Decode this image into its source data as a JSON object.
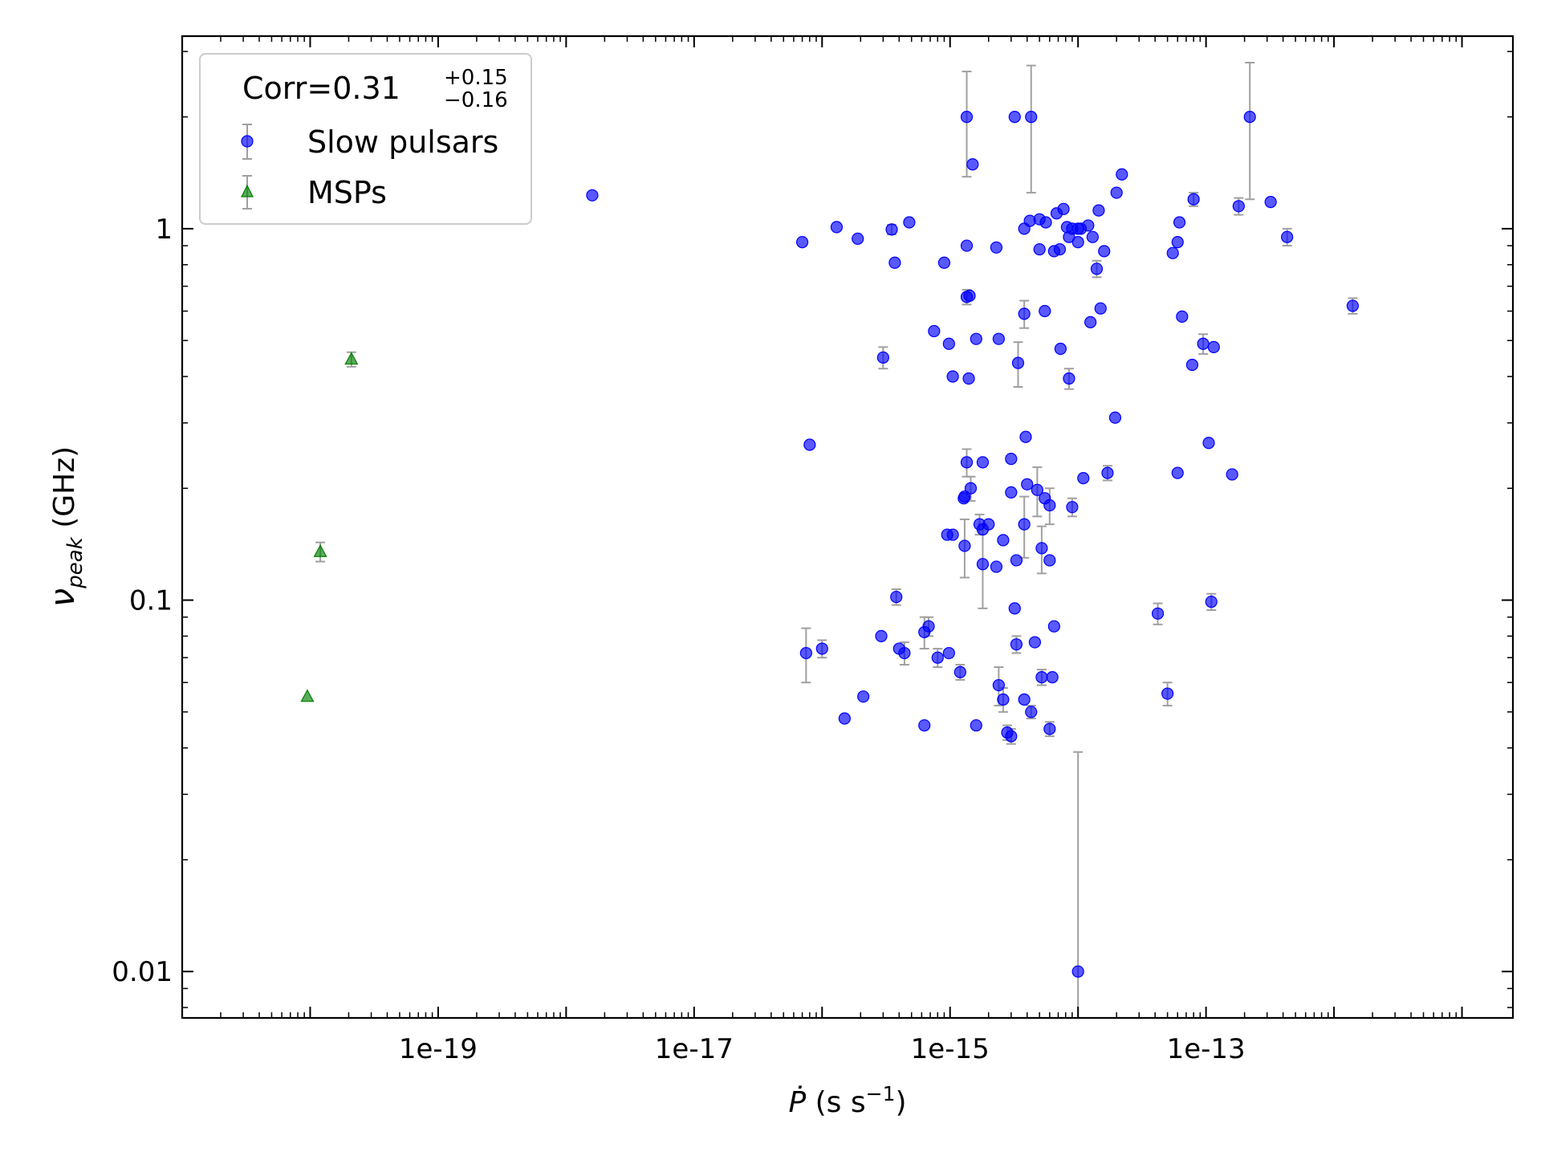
{
  "chart_data": {
    "type": "scatter",
    "title": "",
    "xlabel": "Ṗ (s s⁻¹)",
    "ylabel": "ν_peak (GHz)",
    "xscale": "log",
    "yscale": "log",
    "xlim": [
      1e-21,
      2.5e-11
    ],
    "ylim": [
      0.0075,
      3.3
    ],
    "xticks": [
      {
        "value": 1e-19,
        "label": "1e-19"
      },
      {
        "value": 1e-17,
        "label": "1e-17"
      },
      {
        "value": 1e-15,
        "label": "1e-15"
      },
      {
        "value": 1e-13,
        "label": "1e-13"
      }
    ],
    "yticks": [
      {
        "value": 0.01,
        "label": "0.01"
      },
      {
        "value": 0.1,
        "label": "0.1"
      },
      {
        "value": 1,
        "label": "1"
      }
    ],
    "grid": false,
    "legend": {
      "placement": "top-left",
      "corr_label": "Corr=0.31",
      "corr_sup": "+0.15",
      "corr_sub": "−0.16",
      "entries": [
        {
          "name": "Slow pulsars",
          "marker": "circle"
        },
        {
          "name": "MSPs",
          "marker": "triangle"
        }
      ]
    },
    "colors": {
      "slow": "#0000ff",
      "msp": "#008000",
      "errorbar": "#a0a0a0"
    },
    "series": [
      {
        "name": "Slow pulsars",
        "marker": "circle",
        "points": [
          {
            "x": 1.6e-18,
            "y": 1.23
          },
          {
            "x": 7e-17,
            "y": 0.92
          },
          {
            "x": 1.3e-16,
            "y": 1.01
          },
          {
            "x": 1.9e-16,
            "y": 0.94
          },
          {
            "x": 3.5e-16,
            "y": 0.995,
            "el": 0.03,
            "eh": 0.03
          },
          {
            "x": 4.8e-16,
            "y": 1.04
          },
          {
            "x": 3.7e-16,
            "y": 0.81
          },
          {
            "x": 9e-16,
            "y": 0.81
          },
          {
            "x": 1.35e-15,
            "y": 0.9
          },
          {
            "x": 2.3e-15,
            "y": 0.89
          },
          {
            "x": 1.35e-15,
            "y": 2.0,
            "el": 0.62,
            "eh": 0.65
          },
          {
            "x": 1.5e-15,
            "y": 1.49
          },
          {
            "x": 3.2e-15,
            "y": 2.0
          },
          {
            "x": 4.3e-15,
            "y": 2.0,
            "el": 0.75,
            "eh": 0.75
          },
          {
            "x": 3.8e-15,
            "y": 1.0
          },
          {
            "x": 4.2e-15,
            "y": 1.05
          },
          {
            "x": 5e-15,
            "y": 1.06
          },
          {
            "x": 5.6e-15,
            "y": 1.04
          },
          {
            "x": 6.8e-15,
            "y": 1.1
          },
          {
            "x": 7.7e-15,
            "y": 1.13
          },
          {
            "x": 8.2e-15,
            "y": 1.01
          },
          {
            "x": 9e-15,
            "y": 1.0
          },
          {
            "x": 1e-14,
            "y": 1.0
          },
          {
            "x": 1.05e-14,
            "y": 1.0
          },
          {
            "x": 1.2e-14,
            "y": 1.02
          },
          {
            "x": 8.5e-15,
            "y": 0.95
          },
          {
            "x": 1.3e-14,
            "y": 0.95
          },
          {
            "x": 1.45e-14,
            "y": 1.12
          },
          {
            "x": 1e-14,
            "y": 0.92
          },
          {
            "x": 5e-15,
            "y": 0.88
          },
          {
            "x": 6.5e-15,
            "y": 0.87
          },
          {
            "x": 7.2e-15,
            "y": 0.88
          },
          {
            "x": 1.6e-14,
            "y": 0.87
          },
          {
            "x": 1.4e-14,
            "y": 0.78,
            "el": 0.04,
            "eh": 0.04
          },
          {
            "x": 2e-14,
            "y": 1.25
          },
          {
            "x": 2.2e-14,
            "y": 1.4
          },
          {
            "x": 5.5e-14,
            "y": 0.86
          },
          {
            "x": 6e-14,
            "y": 0.92
          },
          {
            "x": 6.2e-14,
            "y": 1.04
          },
          {
            "x": 8e-14,
            "y": 1.2,
            "el": 0.05,
            "eh": 0.05
          },
          {
            "x": 1.8e-13,
            "y": 1.15,
            "el": 0.06,
            "eh": 0.06
          },
          {
            "x": 2.2e-13,
            "y": 2.0,
            "el": 0.8,
            "eh": 0.8
          },
          {
            "x": 3.2e-13,
            "y": 1.18
          },
          {
            "x": 4.3e-13,
            "y": 0.95,
            "el": 0.05,
            "eh": 0.05
          },
          {
            "x": 1.4e-12,
            "y": 0.62,
            "el": 0.03,
            "eh": 0.03
          },
          {
            "x": 1.35e-15,
            "y": 0.655,
            "el": 0.03,
            "eh": 0.03
          },
          {
            "x": 1.42e-15,
            "y": 0.66
          },
          {
            "x": 3.8e-15,
            "y": 0.59,
            "el": 0.05,
            "eh": 0.05
          },
          {
            "x": 5.5e-15,
            "y": 0.6
          },
          {
            "x": 1.25e-14,
            "y": 0.56
          },
          {
            "x": 1.5e-14,
            "y": 0.61
          },
          {
            "x": 6.5e-14,
            "y": 0.58
          },
          {
            "x": 7.5e-16,
            "y": 0.53
          },
          {
            "x": 9.8e-16,
            "y": 0.49
          },
          {
            "x": 1.6e-15,
            "y": 0.505
          },
          {
            "x": 2.4e-15,
            "y": 0.505
          },
          {
            "x": 7.3e-15,
            "y": 0.475
          },
          {
            "x": 9.5e-14,
            "y": 0.49,
            "el": 0.03,
            "eh": 0.03
          },
          {
            "x": 1.15e-13,
            "y": 0.48
          },
          {
            "x": 3e-16,
            "y": 0.45,
            "el": 0.03,
            "eh": 0.03
          },
          {
            "x": 3.4e-15,
            "y": 0.435,
            "el": 0.06,
            "eh": 0.06
          },
          {
            "x": 7.8e-14,
            "y": 0.43
          },
          {
            "x": 1.05e-15,
            "y": 0.4
          },
          {
            "x": 1.4e-15,
            "y": 0.395
          },
          {
            "x": 8.5e-15,
            "y": 0.395,
            "el": 0.025,
            "eh": 0.025
          },
          {
            "x": 1.95e-14,
            "y": 0.31
          },
          {
            "x": 3.9e-15,
            "y": 0.275
          },
          {
            "x": 1.05e-13,
            "y": 0.265
          },
          {
            "x": 8e-17,
            "y": 0.262
          },
          {
            "x": 3e-15,
            "y": 0.24
          },
          {
            "x": 1.35e-15,
            "y": 0.235,
            "el": 0.02,
            "eh": 0.02
          },
          {
            "x": 1.8e-15,
            "y": 0.235
          },
          {
            "x": 1.7e-14,
            "y": 0.22,
            "el": 0.01,
            "eh": 0.01
          },
          {
            "x": 6e-14,
            "y": 0.22
          },
          {
            "x": 1.6e-13,
            "y": 0.218
          },
          {
            "x": 1.1e-14,
            "y": 0.213
          },
          {
            "x": 4e-15,
            "y": 0.205
          },
          {
            "x": 1.45e-15,
            "y": 0.2,
            "el": 0.015,
            "eh": 0.015
          },
          {
            "x": 1.3e-15,
            "y": 0.19
          },
          {
            "x": 1.28e-15,
            "y": 0.188
          },
          {
            "x": 3e-15,
            "y": 0.195
          },
          {
            "x": 4.8e-15,
            "y": 0.198,
            "el": 0.03,
            "eh": 0.03
          },
          {
            "x": 5.5e-15,
            "y": 0.188
          },
          {
            "x": 6e-15,
            "y": 0.18,
            "el": 0.02,
            "eh": 0.02
          },
          {
            "x": 9e-15,
            "y": 0.178,
            "el": 0.01,
            "eh": 0.01
          },
          {
            "x": 1.7e-15,
            "y": 0.16,
            "el": 0.01,
            "eh": 0.01
          },
          {
            "x": 2e-15,
            "y": 0.16
          },
          {
            "x": 1.8e-15,
            "y": 0.155
          },
          {
            "x": 3.8e-15,
            "y": 0.16,
            "el": 0.03,
            "eh": 0.03
          },
          {
            "x": 9.5e-16,
            "y": 0.15
          },
          {
            "x": 1.05e-15,
            "y": 0.15
          },
          {
            "x": 2.6e-15,
            "y": 0.145
          },
          {
            "x": 1.3e-15,
            "y": 0.14,
            "el": 0.025,
            "eh": 0.025
          },
          {
            "x": 5.2e-15,
            "y": 0.138,
            "el": 0.02,
            "eh": 0.02
          },
          {
            "x": 1.8e-15,
            "y": 0.125,
            "el": 0.03,
            "eh": 0.035
          },
          {
            "x": 2.3e-15,
            "y": 0.123
          },
          {
            "x": 3.3e-15,
            "y": 0.128
          },
          {
            "x": 6e-15,
            "y": 0.128
          },
          {
            "x": 3.8e-16,
            "y": 0.102,
            "el": 0.005,
            "eh": 0.005
          },
          {
            "x": 3.2e-15,
            "y": 0.095
          },
          {
            "x": 1.1e-13,
            "y": 0.099,
            "el": 0.005,
            "eh": 0.005
          },
          {
            "x": 4.2e-14,
            "y": 0.092,
            "el": 0.006,
            "eh": 0.006
          },
          {
            "x": 6.8e-16,
            "y": 0.085,
            "el": 0.005,
            "eh": 0.005
          },
          {
            "x": 6.5e-15,
            "y": 0.085
          },
          {
            "x": 6.3e-16,
            "y": 0.082,
            "el": 0.008,
            "eh": 0.008
          },
          {
            "x": 2.9e-16,
            "y": 0.08
          },
          {
            "x": 4e-16,
            "y": 0.074
          },
          {
            "x": 4.4e-16,
            "y": 0.072,
            "el": 0.005,
            "eh": 0.005
          },
          {
            "x": 7.5e-17,
            "y": 0.072,
            "el": 0.012,
            "eh": 0.012
          },
          {
            "x": 1e-16,
            "y": 0.074,
            "el": 0.004,
            "eh": 0.004
          },
          {
            "x": 8e-16,
            "y": 0.07,
            "el": 0.004,
            "eh": 0.004
          },
          {
            "x": 9.8e-16,
            "y": 0.072
          },
          {
            "x": 3.3e-15,
            "y": 0.076,
            "el": 0.004,
            "eh": 0.004
          },
          {
            "x": 4.6e-15,
            "y": 0.077
          },
          {
            "x": 1.2e-15,
            "y": 0.064,
            "el": 0.003,
            "eh": 0.003
          },
          {
            "x": 5.2e-15,
            "y": 0.062,
            "el": 0.003,
            "eh": 0.003
          },
          {
            "x": 6.3e-15,
            "y": 0.062
          },
          {
            "x": 2.4e-15,
            "y": 0.059,
            "el": 0.007,
            "eh": 0.007
          },
          {
            "x": 2.1e-16,
            "y": 0.055
          },
          {
            "x": 2.6e-15,
            "y": 0.054,
            "el": 0.004,
            "eh": 0.004
          },
          {
            "x": 3.8e-15,
            "y": 0.054
          },
          {
            "x": 5e-14,
            "y": 0.056,
            "el": 0.004,
            "eh": 0.004
          },
          {
            "x": 1.5e-16,
            "y": 0.048
          },
          {
            "x": 4.3e-15,
            "y": 0.05,
            "el": 0.002,
            "eh": 0.002
          },
          {
            "x": 6.3e-16,
            "y": 0.046
          },
          {
            "x": 1.6e-15,
            "y": 0.046
          },
          {
            "x": 2.8e-15,
            "y": 0.044,
            "el": 0.002,
            "eh": 0.002
          },
          {
            "x": 3e-15,
            "y": 0.043,
            "el": 0.002,
            "eh": 0.002
          },
          {
            "x": 6e-15,
            "y": 0.045,
            "el": 0.002,
            "eh": 0.002
          },
          {
            "x": 1e-14,
            "y": 0.01,
            "el": 0.0028,
            "eh": 0.029
          }
        ]
      },
      {
        "name": "MSPs",
        "marker": "triangle",
        "points": [
          {
            "x": 9.5e-21,
            "y": 0.055
          },
          {
            "x": 1.2e-20,
            "y": 0.135,
            "el": 0.008,
            "eh": 0.008
          },
          {
            "x": 2.1e-20,
            "y": 0.445,
            "el": 0.02,
            "eh": 0.02
          }
        ]
      }
    ]
  }
}
